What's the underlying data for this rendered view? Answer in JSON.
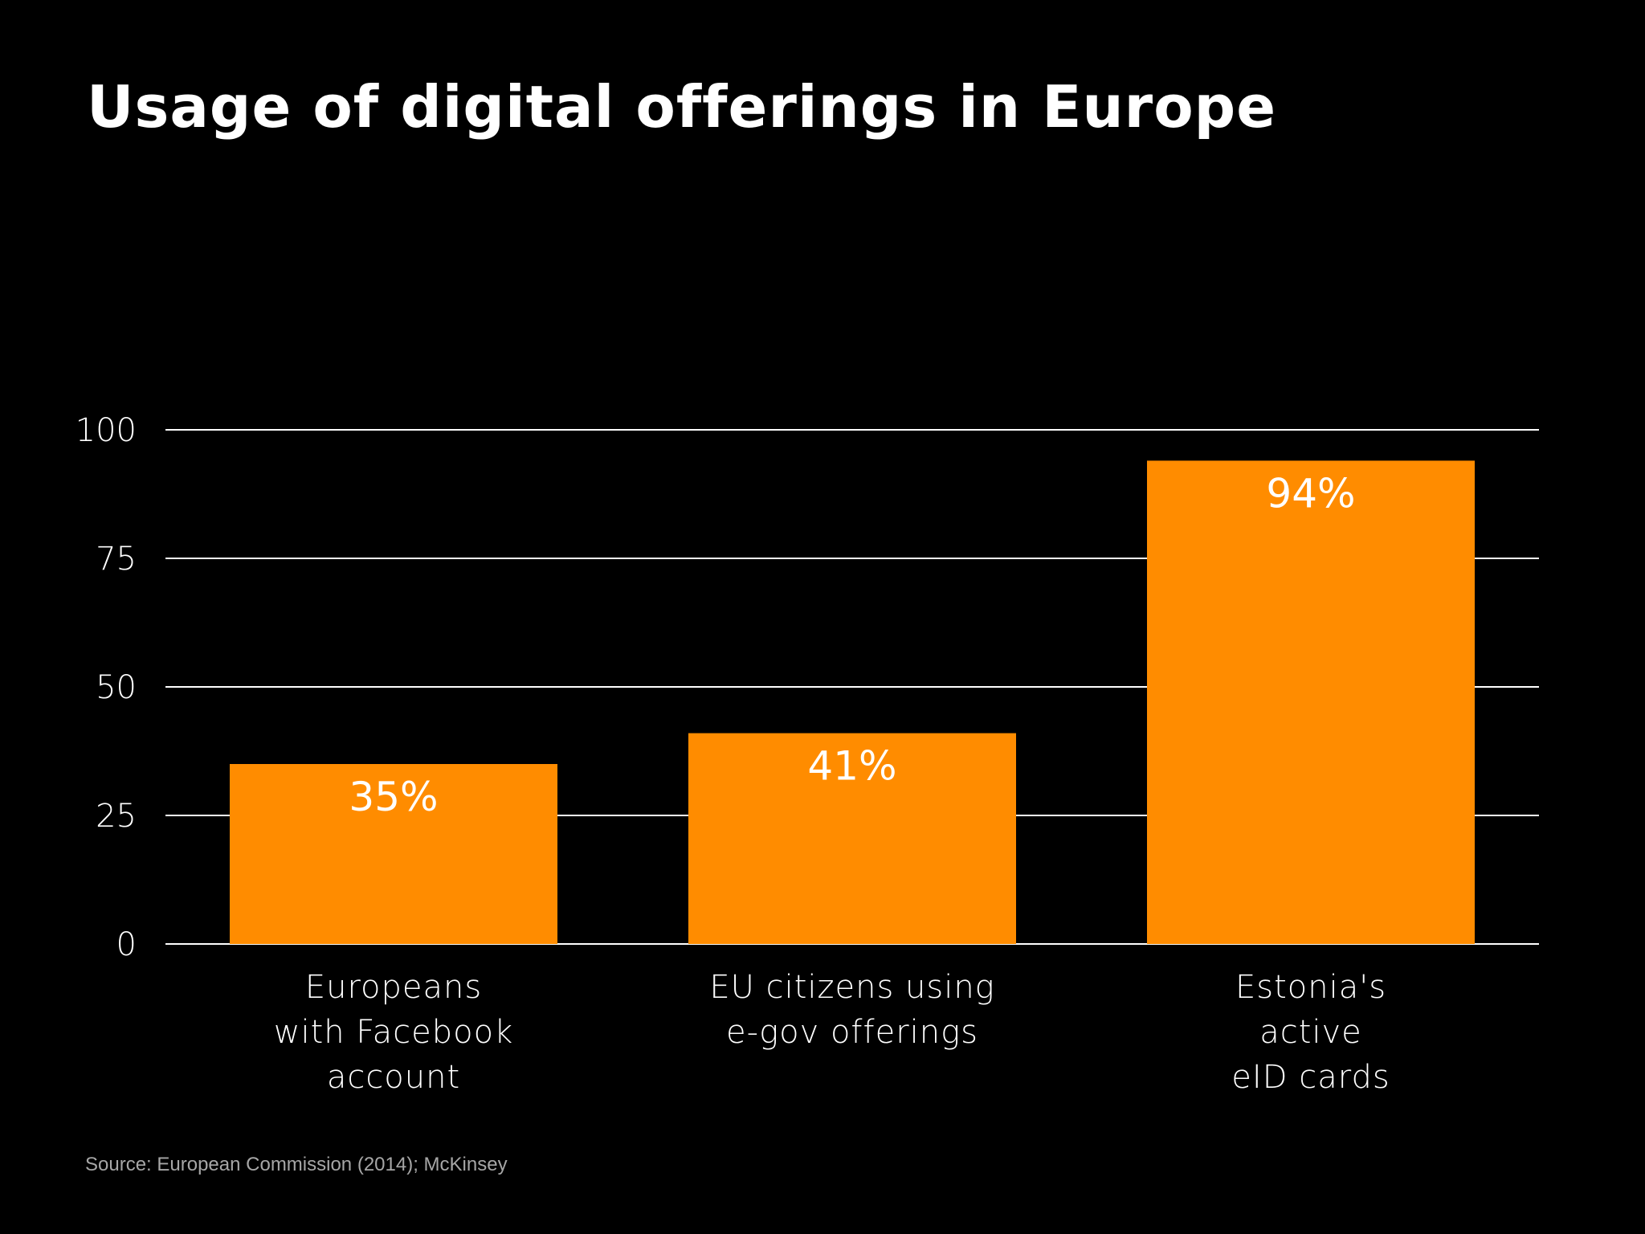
{
  "title": "Usage of digital offerings in Europe",
  "source": "Source: European Commission (2014); McKinsey",
  "colors": {
    "background": "#000000",
    "bar": "#FF8C00",
    "text": "#FFFFFF",
    "grid": "#FFFFFF",
    "source": "#A6A6A6"
  },
  "chart_data": {
    "type": "bar",
    "title": "Usage of digital offerings in Europe",
    "categories": [
      [
        "Europeans",
        "with Facebook",
        "account"
      ],
      [
        "EU citizens using",
        "e-gov offerings"
      ],
      [
        "Estonia's",
        "active",
        "eID cards"
      ]
    ],
    "values": [
      35,
      41,
      94
    ],
    "data_labels": [
      "35%",
      "41%",
      "94%"
    ],
    "yticks": [
      0,
      25,
      50,
      75,
      100
    ],
    "ylim": [
      0,
      100
    ],
    "xlabel": "",
    "ylabel": "",
    "grid": true,
    "legend": "none"
  }
}
